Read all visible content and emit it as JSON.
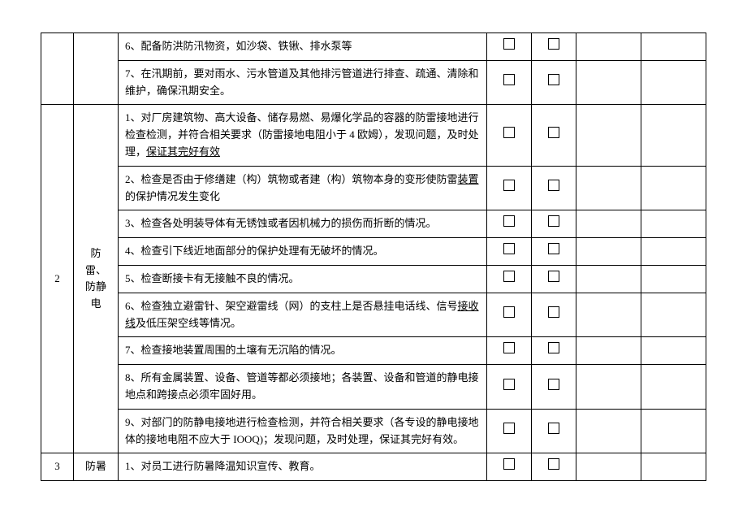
{
  "sections": [
    {
      "seq": "",
      "category": "",
      "rows": [
        {
          "text": "6、配备防洪防汛物资，如沙袋、铁锹、排水泵等"
        },
        {
          "text": "7、在汛期前，要对雨水、污水管道及其他排污管道进行排查、疏通、清除和维护，确保汛期安全。"
        }
      ]
    },
    {
      "seq": "2",
      "category": "防雷、防静电",
      "rows": [
        {
          "segments": [
            {
              "t": "1、对厂房建筑物、高大设备、储存易燃、易爆化学品的容器的防雷接地进行检查检测，并符合相关要求（防雷接地电阻小于 4 欧姆），发现问题，及时处理，"
            },
            {
              "t": "保证其完好有效",
              "u": true
            }
          ]
        },
        {
          "segments": [
            {
              "t": "2、检查是否由于修缮建（构）筑物或者建（构）筑物本身的变形使防雷"
            },
            {
              "t": "装置",
              "u": true
            },
            {
              "t": "的保护情况发生变化"
            }
          ]
        },
        {
          "text": "3、检查各处明装导体有无锈蚀或者因机械力的损伤而折断的情况。"
        },
        {
          "text": "4、检查引下线近地面部分的保护处理有无破坏的情况。"
        },
        {
          "text": "5、检查断接卡有无接触不良的情况。"
        },
        {
          "segments": [
            {
              "t": "6、检查独立避雷针、架空避雷线（网）的支柱上是否悬挂电话线、信号"
            },
            {
              "t": "接收线",
              "u": true
            },
            {
              "t": "及低压架空线等情况。"
            }
          ]
        },
        {
          "text": "7、检查接地装置周围的土壤有无沉陷的情况。"
        },
        {
          "text": "8、所有金属装置、设备、管道等都必须接地；各装置、设备和管道的静电接地点和跨接点必须牢固好用。"
        },
        {
          "text": "9、对部门的防静电接地进行检查检测，并符合相关要求（各专设的静电接地体的接地电阻不应大于 IOOQ)；发现问题，及时处理，保证其完好有效。"
        }
      ]
    },
    {
      "seq": "3",
      "category": "防暑",
      "rows": [
        {
          "text": "1、对员工进行防暑降温知识宣传、教育。"
        }
      ]
    }
  ]
}
